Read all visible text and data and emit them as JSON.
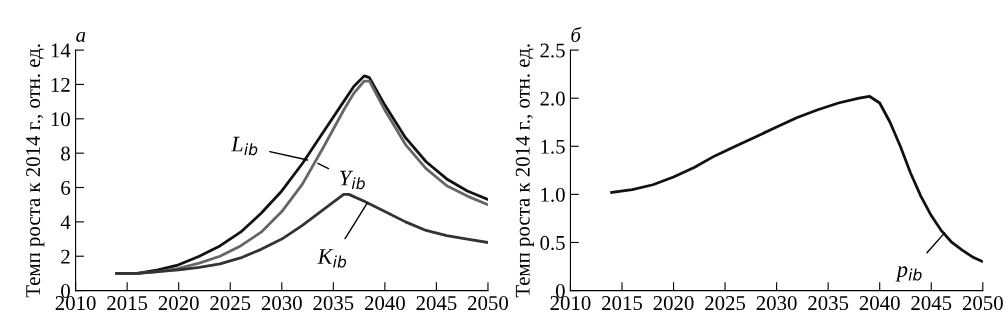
{
  "chart_data": [
    {
      "type": "line",
      "title": "а",
      "ylabel": "Темп роста к 2014 г., отн. ед.",
      "xlim": [
        2010,
        2050
      ],
      "xticks": [
        2010,
        2015,
        2020,
        2025,
        2030,
        2035,
        2040,
        2045,
        2050
      ],
      "ylim": [
        0,
        14
      ],
      "yticks": [
        0,
        2,
        4,
        6,
        8,
        10,
        12,
        14
      ],
      "grid": false,
      "legend": false,
      "marker": "none",
      "line_style": "solid",
      "annotations": [
        {
          "text": "L$_{ib}$",
          "x": 2032.5,
          "y": 7.6
        },
        {
          "text": "Y$_{ib}$",
          "x": 2033.5,
          "y": 7.4
        },
        {
          "text": "K$_{ib}$",
          "x": 2038.3,
          "y": 5.1
        }
      ],
      "series": [
        {
          "color": "#111111",
          "x": [
            2014,
            2016,
            2018,
            2020,
            2022,
            2024,
            2026,
            2028,
            2030,
            2032,
            2034,
            2036,
            2037,
            2038,
            2038.5,
            2040,
            2042,
            2044,
            2046,
            2048,
            2050
          ],
          "values": [
            1.0,
            1.0,
            1.2,
            1.5,
            2.0,
            2.6,
            3.4,
            4.5,
            5.8,
            7.4,
            9.2,
            11.0,
            11.9,
            12.5,
            12.4,
            10.8,
            8.9,
            7.5,
            6.5,
            5.8,
            5.3
          ]
        },
        {
          "color": "#666666",
          "x": [
            2014,
            2016,
            2018,
            2020,
            2022,
            2024,
            2026,
            2028,
            2030,
            2032,
            2034,
            2036,
            2037,
            2038,
            2038.5,
            2040,
            2042,
            2044,
            2046,
            2048,
            2050
          ],
          "values": [
            1.0,
            1.0,
            1.1,
            1.3,
            1.6,
            2.0,
            2.6,
            3.4,
            4.6,
            6.2,
            8.3,
            10.5,
            11.5,
            12.2,
            12.2,
            10.5,
            8.5,
            7.1,
            6.1,
            5.5,
            5.0
          ]
        },
        {
          "color": "#333333",
          "x": [
            2014,
            2016,
            2018,
            2020,
            2022,
            2024,
            2026,
            2028,
            2030,
            2032,
            2034,
            2036,
            2036.5,
            2038,
            2040,
            2042,
            2044,
            2046,
            2048,
            2050
          ],
          "values": [
            1.0,
            1.0,
            1.1,
            1.2,
            1.35,
            1.55,
            1.9,
            2.4,
            3.0,
            3.8,
            4.7,
            5.6,
            5.6,
            5.2,
            4.6,
            4.0,
            3.5,
            3.2,
            3.0,
            2.8
          ]
        }
      ]
    },
    {
      "type": "line",
      "title": "б",
      "ylabel": "Темп роста к 2014 г., отн. ед.",
      "xlim": [
        2010,
        2050
      ],
      "xticks": [
        2010,
        2015,
        2020,
        2025,
        2030,
        2035,
        2040,
        2045,
        2050
      ],
      "ylim": [
        0,
        2.5
      ],
      "yticks": [
        0,
        0.5,
        {
          "value": 1,
          "label": "1.0"
        },
        1.5,
        {
          "value": 2,
          "label": "2.0"
        },
        2.5
      ],
      "grid": false,
      "legend": false,
      "marker": "none",
      "line_style": "solid",
      "annotations": [
        {
          "text": "p$_{ib}$",
          "x": 2046.3,
          "y": 0.6
        }
      ],
      "series": [
        {
          "color": "#111111",
          "x": [
            2014,
            2016,
            2018,
            2020,
            2022,
            2024,
            2026,
            2028,
            2030,
            2032,
            2034,
            2036,
            2038,
            2039,
            2040,
            2041,
            2042,
            2043,
            2044,
            2045,
            2046,
            2047,
            2048,
            2049,
            2050
          ],
          "values": [
            1.02,
            1.05,
            1.1,
            1.18,
            1.28,
            1.4,
            1.5,
            1.6,
            1.7,
            1.8,
            1.88,
            1.95,
            2.0,
            2.02,
            1.95,
            1.75,
            1.5,
            1.22,
            0.98,
            0.78,
            0.62,
            0.5,
            0.42,
            0.35,
            0.3
          ]
        }
      ]
    }
  ]
}
